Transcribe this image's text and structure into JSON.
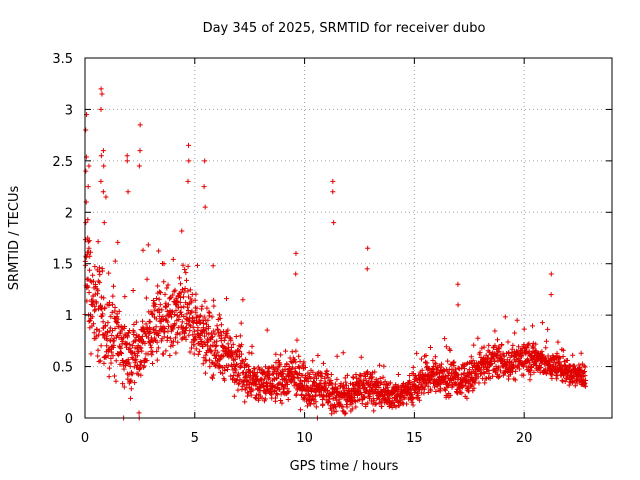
{
  "chart_data": {
    "type": "scatter",
    "title": "Day 345 of 2025, SRMTID for receiver dubo",
    "xlabel": "GPS time / hours",
    "ylabel": "SRMTID / TECUs",
    "xlim": [
      0,
      24
    ],
    "ylim": [
      0,
      3.5
    ],
    "xticks": [
      0,
      5,
      10,
      15,
      20
    ],
    "yticks": [
      0,
      0.5,
      1,
      1.5,
      2,
      2.5,
      3,
      3.5
    ],
    "xtick_labels": [
      "0",
      "5",
      "10",
      "15",
      "20"
    ],
    "ytick_labels": [
      "0",
      "0.5",
      "1",
      "1.5",
      "2",
      "2.5",
      "3",
      "3.5"
    ],
    "grid": true,
    "marker": "+",
    "color": "#e00000",
    "envelope": {
      "hours": [
        0,
        0.5,
        1,
        1.5,
        2,
        2.5,
        3,
        3.5,
        4,
        4.5,
        5,
        5.5,
        6,
        6.5,
        7,
        7.5,
        8,
        8.5,
        9,
        9.5,
        10,
        10.5,
        11,
        11.5,
        12,
        12.5,
        13,
        13.5,
        14,
        14.5,
        15,
        15.5,
        16,
        16.5,
        17,
        17.5,
        18,
        18.5,
        19,
        19.5,
        20,
        20.5,
        21,
        21.5,
        22,
        22.5,
        22.8
      ],
      "center": [
        1.35,
        1.1,
        0.85,
        0.75,
        0.6,
        0.65,
        0.85,
        0.95,
        1.0,
        1.05,
        0.9,
        0.8,
        0.7,
        0.62,
        0.55,
        0.35,
        0.32,
        0.35,
        0.38,
        0.4,
        0.35,
        0.3,
        0.3,
        0.2,
        0.22,
        0.28,
        0.32,
        0.22,
        0.22,
        0.24,
        0.3,
        0.38,
        0.42,
        0.38,
        0.36,
        0.38,
        0.48,
        0.55,
        0.55,
        0.52,
        0.6,
        0.58,
        0.52,
        0.5,
        0.45,
        0.42,
        0.38
      ],
      "spread": [
        0.5,
        0.45,
        0.4,
        0.35,
        0.3,
        0.35,
        0.35,
        0.35,
        0.35,
        0.35,
        0.32,
        0.3,
        0.3,
        0.28,
        0.25,
        0.2,
        0.2,
        0.2,
        0.2,
        0.2,
        0.2,
        0.18,
        0.18,
        0.14,
        0.15,
        0.16,
        0.16,
        0.12,
        0.12,
        0.14,
        0.15,
        0.15,
        0.16,
        0.15,
        0.15,
        0.15,
        0.14,
        0.14,
        0.14,
        0.14,
        0.16,
        0.16,
        0.14,
        0.12,
        0.12,
        0.1,
        0.1
      ]
    },
    "spikes": [
      {
        "x": 0.05,
        "y": [
          1.9,
          2.1,
          2.4,
          2.8,
          2.95
        ]
      },
      {
        "x": 0.15,
        "y": [
          1.75,
          1.65,
          2.25,
          2.45
        ]
      },
      {
        "x": 0.75,
        "y": [
          2.3,
          2.55,
          3.0,
          3.15,
          3.2
        ]
      },
      {
        "x": 0.85,
        "y": [
          1.9,
          2.2,
          2.45,
          2.6
        ]
      },
      {
        "x": 1.95,
        "y": [
          2.2,
          2.5,
          2.55
        ]
      },
      {
        "x": 2.5,
        "y": [
          2.45,
          2.6,
          2.85
        ]
      },
      {
        "x": 4.7,
        "y": [
          2.3,
          2.5,
          2.65
        ]
      },
      {
        "x": 5.45,
        "y": [
          2.05,
          2.25,
          2.5
        ]
      },
      {
        "x": 9.6,
        "y": [
          1.4,
          1.6
        ]
      },
      {
        "x": 11.3,
        "y": [
          1.9,
          2.2,
          2.3
        ]
      },
      {
        "x": 12.85,
        "y": [
          1.45,
          1.65
        ]
      },
      {
        "x": 17.0,
        "y": [
          1.1,
          1.3
        ]
      },
      {
        "x": 21.25,
        "y": [
          1.2,
          1.4
        ]
      },
      {
        "x": 1.75,
        "y": [
          0.0
        ]
      },
      {
        "x": 2.45,
        "y": [
          0.05,
          0.0
        ]
      },
      {
        "x": 10.6,
        "y": [
          0.0
        ]
      }
    ]
  }
}
